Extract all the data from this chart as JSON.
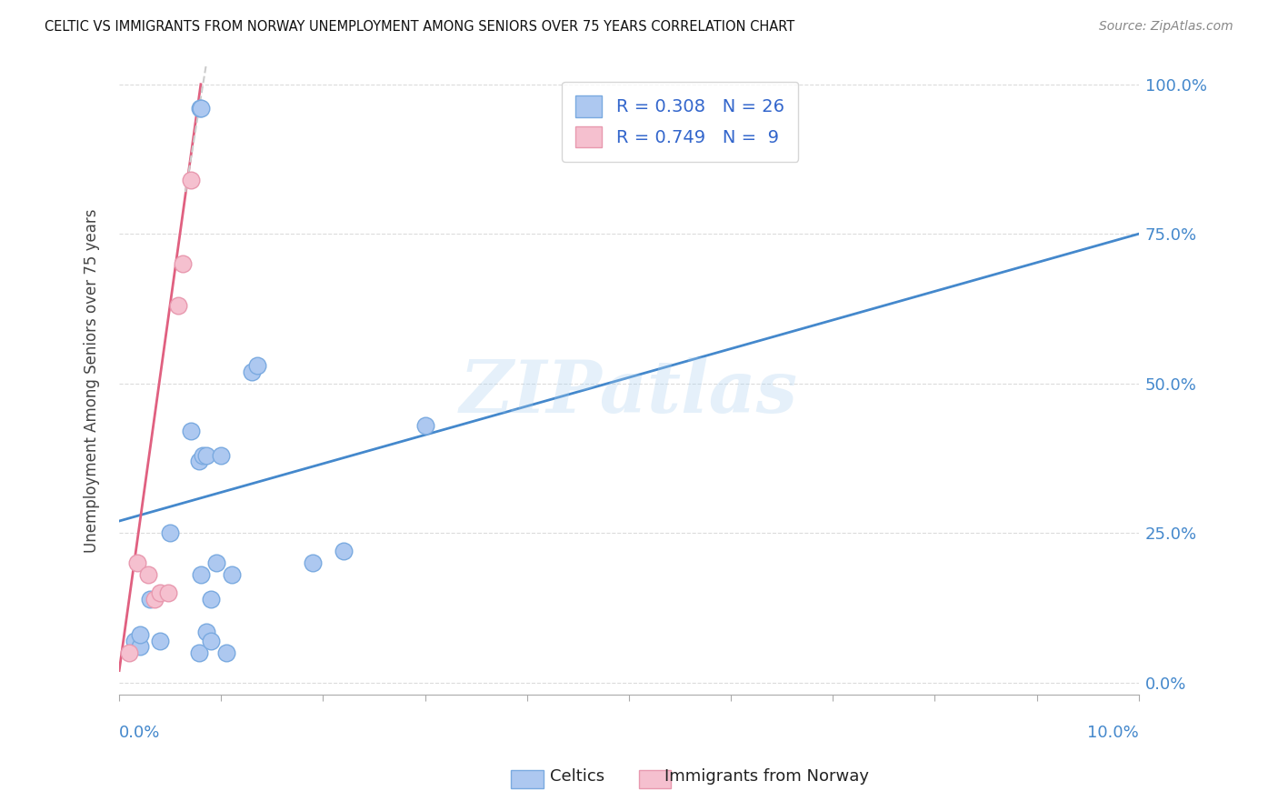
{
  "title": "CELTIC VS IMMIGRANTS FROM NORWAY UNEMPLOYMENT AMONG SENIORS OVER 75 YEARS CORRELATION CHART",
  "source": "Source: ZipAtlas.com",
  "ylabel": "Unemployment Among Seniors over 75 years",
  "yticks": [
    0,
    25,
    50,
    75,
    100
  ],
  "ytick_labels": [
    "0.0%",
    "25.0%",
    "50.0%",
    "75.0%",
    "100.0%"
  ],
  "xtick_left_label": "0.0%",
  "xtick_right_label": "10.0%",
  "celtics_color": "#adc8f0",
  "celtics_edge_color": "#7aaae0",
  "norway_color": "#f5c0cf",
  "norway_edge_color": "#e899af",
  "regression_celtics_color": "#4488cc",
  "regression_norway_color": "#e06080",
  "legend_r_color": "#3366cc",
  "watermark": "ZIPatlas",
  "celtics_R": 0.308,
  "celtics_N": 26,
  "norway_R": 0.749,
  "norway_N": 9,
  "celtics_points_x": [
    0.15,
    0.2,
    0.2,
    0.3,
    0.4,
    0.5,
    0.7,
    0.78,
    0.78,
    0.8,
    0.82,
    0.85,
    0.85,
    0.9,
    0.9,
    0.95,
    1.0,
    1.05,
    1.1,
    1.3,
    1.35,
    1.9,
    2.2,
    3.0,
    0.79,
    0.8
  ],
  "celtics_points_y": [
    7.0,
    6.0,
    8.0,
    14.0,
    7.0,
    25.0,
    42.0,
    37.0,
    5.0,
    18.0,
    38.0,
    38.0,
    8.5,
    7.0,
    14.0,
    20.0,
    38.0,
    5.0,
    18.0,
    52.0,
    53.0,
    20.0,
    22.0,
    43.0,
    96.0,
    96.0
  ],
  "norway_points_x": [
    0.1,
    0.18,
    0.28,
    0.35,
    0.4,
    0.48,
    0.58,
    0.62,
    0.7
  ],
  "norway_points_y": [
    5.0,
    20.0,
    18.0,
    14.0,
    15.0,
    15.0,
    63.0,
    70.0,
    84.0
  ],
  "celtics_reg_x0": 0.0,
  "celtics_reg_y0": 27.0,
  "celtics_reg_x1": 10.0,
  "celtics_reg_y1": 75.0,
  "norway_reg_x0": 0.0,
  "norway_reg_y0": 2.0,
  "norway_reg_x1": 0.8,
  "norway_reg_y1": 100.0,
  "norway_reg_dash_x0": 0.65,
  "norway_reg_dash_y0": 82.0,
  "norway_reg_dash_x1": 0.85,
  "norway_reg_dash_y1": 103.0,
  "xmin": 0.0,
  "xmax": 10.0,
  "ymin": -2,
  "ymax": 103,
  "marker_size": 180,
  "background_color": "#ffffff",
  "grid_color": "#cccccc"
}
